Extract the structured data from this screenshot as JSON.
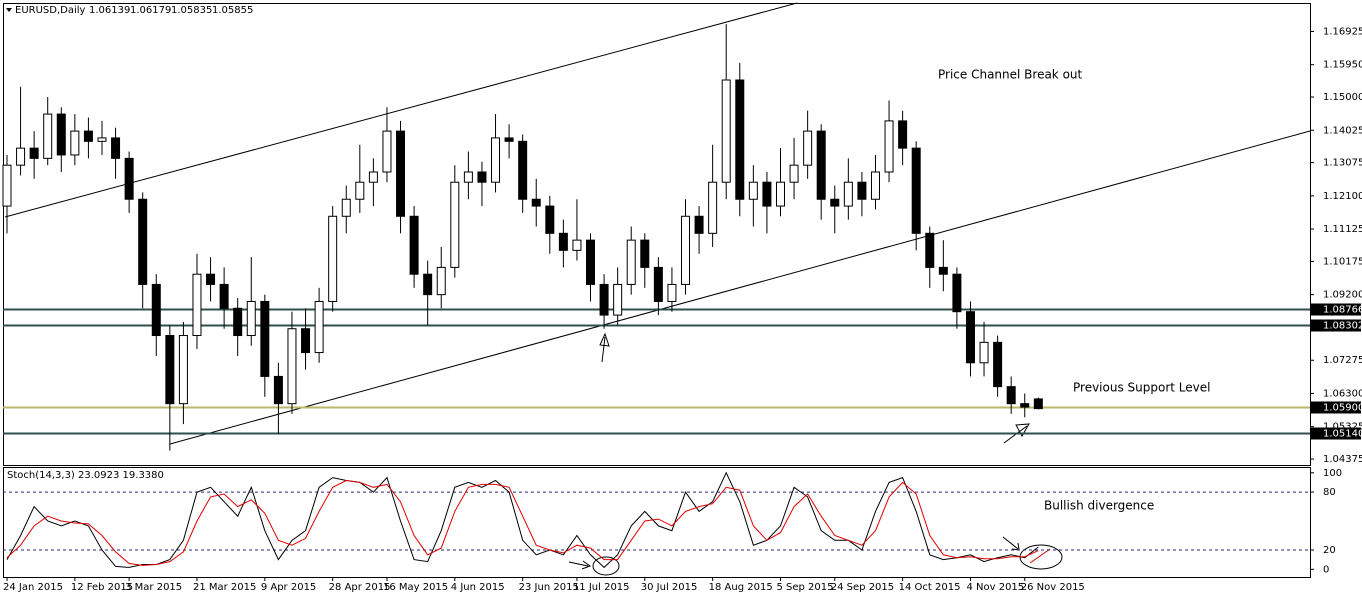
{
  "chart_data": {
    "type": "candlestick",
    "symbol": "EURUSD,Daily",
    "up_color": "#ffffff",
    "down_color": "#000000",
    "categories": [
      "24 Jan 2015",
      null,
      null,
      null,
      null,
      "12 Feb 2015",
      null,
      null,
      null,
      "3 Mar 2015",
      null,
      null,
      null,
      null,
      "21 Mar 2015",
      null,
      null,
      null,
      null,
      "9 Apr 2015",
      null,
      null,
      null,
      null,
      "28 Apr 2015",
      null,
      null,
      null,
      "16 May 2015",
      null,
      null,
      null,
      null,
      "4 Jun 2015",
      null,
      null,
      null,
      null,
      "23 Jun 2015",
      null,
      null,
      null,
      "11 Jul 2015",
      null,
      null,
      null,
      null,
      "30 Jul 2015",
      null,
      null,
      null,
      null,
      "18 Aug 2015",
      null,
      null,
      null,
      null,
      "5 Sep 2015",
      null,
      null,
      null,
      "24 Sep 2015",
      null,
      null,
      null,
      null,
      "14 Oct 2015",
      null,
      null,
      null,
      null,
      "4 Nov 2015",
      null,
      null,
      null,
      "26 Nov 2015",
      null
    ],
    "candles": [
      [
        1.118,
        1.133,
        1.11,
        1.13
      ],
      [
        1.13,
        1.153,
        1.127,
        1.135
      ],
      [
        1.135,
        1.14,
        1.126,
        1.132
      ],
      [
        1.132,
        1.15,
        1.13,
        1.145
      ],
      [
        1.145,
        1.147,
        1.128,
        1.133
      ],
      [
        1.133,
        1.145,
        1.13,
        1.14
      ],
      [
        1.14,
        1.144,
        1.132,
        1.137
      ],
      [
        1.137,
        1.143,
        1.133,
        1.138
      ],
      [
        1.138,
        1.141,
        1.126,
        1.132
      ],
      [
        1.132,
        1.134,
        1.116,
        1.12
      ],
      [
        1.12,
        1.122,
        1.088,
        1.095
      ],
      [
        1.095,
        1.098,
        1.074,
        1.08
      ],
      [
        1.08,
        1.083,
        1.0462,
        1.06
      ],
      [
        1.06,
        1.084,
        1.054,
        1.08
      ],
      [
        1.08,
        1.104,
        1.076,
        1.098
      ],
      [
        1.098,
        1.103,
        1.09,
        1.095
      ],
      [
        1.095,
        1.1,
        1.082,
        1.088
      ],
      [
        1.088,
        1.091,
        1.074,
        1.08
      ],
      [
        1.08,
        1.103,
        1.077,
        1.09
      ],
      [
        1.09,
        1.092,
        1.062,
        1.068
      ],
      [
        1.068,
        1.072,
        1.051,
        1.06
      ],
      [
        1.06,
        1.087,
        1.057,
        1.082
      ],
      [
        1.082,
        1.088,
        1.07,
        1.075
      ],
      [
        1.075,
        1.094,
        1.072,
        1.09
      ],
      [
        1.09,
        1.118,
        1.087,
        1.115
      ],
      [
        1.115,
        1.124,
        1.11,
        1.12
      ],
      [
        1.12,
        1.136,
        1.116,
        1.125
      ],
      [
        1.125,
        1.132,
        1.118,
        1.128
      ],
      [
        1.128,
        1.147,
        1.125,
        1.14
      ],
      [
        1.14,
        1.143,
        1.11,
        1.115
      ],
      [
        1.115,
        1.118,
        1.094,
        1.098
      ],
      [
        1.098,
        1.102,
        1.083,
        1.092
      ],
      [
        1.092,
        1.106,
        1.088,
        1.1
      ],
      [
        1.1,
        1.13,
        1.097,
        1.125
      ],
      [
        1.125,
        1.134,
        1.12,
        1.128
      ],
      [
        1.128,
        1.131,
        1.118,
        1.125
      ],
      [
        1.125,
        1.145,
        1.122,
        1.138
      ],
      [
        1.138,
        1.142,
        1.132,
        1.137
      ],
      [
        1.137,
        1.139,
        1.116,
        1.12
      ],
      [
        1.12,
        1.126,
        1.112,
        1.118
      ],
      [
        1.118,
        1.121,
        1.104,
        1.11
      ],
      [
        1.11,
        1.114,
        1.1,
        1.105
      ],
      [
        1.105,
        1.12,
        1.102,
        1.108
      ],
      [
        1.108,
        1.11,
        1.09,
        1.095
      ],
      [
        1.095,
        1.098,
        1.082,
        1.086
      ],
      [
        1.086,
        1.1,
        1.083,
        1.095
      ],
      [
        1.095,
        1.112,
        1.092,
        1.108
      ],
      [
        1.108,
        1.11,
        1.094,
        1.1
      ],
      [
        1.1,
        1.103,
        1.086,
        1.09
      ],
      [
        1.09,
        1.1,
        1.087,
        1.095
      ],
      [
        1.095,
        1.12,
        1.092,
        1.115
      ],
      [
        1.115,
        1.118,
        1.104,
        1.11
      ],
      [
        1.11,
        1.136,
        1.106,
        1.125
      ],
      [
        1.125,
        1.1714,
        1.12,
        1.155
      ],
      [
        1.155,
        1.16,
        1.115,
        1.12
      ],
      [
        1.12,
        1.13,
        1.112,
        1.125
      ],
      [
        1.125,
        1.128,
        1.11,
        1.118
      ],
      [
        1.118,
        1.135,
        1.115,
        1.125
      ],
      [
        1.125,
        1.138,
        1.12,
        1.13
      ],
      [
        1.13,
        1.146,
        1.126,
        1.14
      ],
      [
        1.14,
        1.142,
        1.114,
        1.12
      ],
      [
        1.12,
        1.124,
        1.11,
        1.118
      ],
      [
        1.118,
        1.132,
        1.114,
        1.125
      ],
      [
        1.125,
        1.128,
        1.115,
        1.12
      ],
      [
        1.12,
        1.133,
        1.117,
        1.128
      ],
      [
        1.128,
        1.149,
        1.125,
        1.143
      ],
      [
        1.143,
        1.146,
        1.13,
        1.135
      ],
      [
        1.135,
        1.137,
        1.105,
        1.11
      ],
      [
        1.11,
        1.112,
        1.094,
        1.1
      ],
      [
        1.1,
        1.108,
        1.093,
        1.098
      ],
      [
        1.098,
        1.1,
        1.082,
        1.087
      ],
      [
        1.087,
        1.09,
        1.068,
        1.072
      ],
      [
        1.072,
        1.084,
        1.068,
        1.078
      ],
      [
        1.078,
        1.08,
        1.062,
        1.065
      ],
      [
        1.065,
        1.068,
        1.057,
        1.06
      ],
      [
        1.06,
        1.063,
        1.056,
        1.059
      ],
      [
        1.06139,
        1.06179,
        1.05835,
        1.05855
      ]
    ],
    "ylim": [
      1.042,
      1.1776
    ],
    "yticks": [
      1.16925,
      {
        "value": 1.1595,
        "label": "1.15950"
      },
      {
        "value": 1.15,
        "label": "1.15000"
      },
      1.14025,
      1.13075,
      {
        "value": 1.121,
        "label": "1.12100"
      },
      1.11125,
      1.10175,
      {
        "value": 1.092,
        "label": "1.09200"
      },
      1.07275,
      {
        "value": 1.063,
        "label": "1.06300"
      },
      1.05325,
      1.04375
    ],
    "levels": [
      {
        "value": 1.08766,
        "color": "#2f4f4f"
      },
      {
        "value": 1.08302,
        "color": "#2f4f4f"
      },
      {
        "value": 1.059,
        "label": "1.05900",
        "color": "#b8b86a"
      },
      {
        "value": 1.0514,
        "label": "1.05140",
        "color": "#2f4f4f"
      }
    ],
    "annotations": [
      "Price Channel Break out",
      "Previous Support Level",
      "Bullish divergence"
    ],
    "stoch": {
      "title": "Stoch(14,3,3) 23.0923 19.3380",
      "ylim": [
        -8,
        106
      ],
      "yticks": [
        100,
        80,
        20,
        0
      ],
      "levels": [
        80,
        20
      ],
      "series": [
        {
          "color": "#000000",
          "values": [
            10,
            35,
            65,
            50,
            45,
            50,
            45,
            20,
            3,
            2,
            5,
            5,
            10,
            30,
            80,
            85,
            70,
            55,
            85,
            40,
            10,
            30,
            40,
            85,
            95,
            92,
            90,
            80,
            95,
            50,
            10,
            8,
            40,
            85,
            90,
            85,
            92,
            80,
            30,
            15,
            20,
            15,
            35,
            15,
            2,
            15,
            45,
            60,
            45,
            40,
            80,
            60,
            70,
            100,
            70,
            25,
            30,
            45,
            85,
            75,
            40,
            30,
            30,
            20,
            60,
            90,
            95,
            60,
            15,
            10,
            12,
            15,
            8,
            12,
            15,
            12,
            23.0923
          ]
        },
        {
          "color": "#e00000",
          "values": [
            12,
            25,
            45,
            55,
            50,
            48,
            47,
            35,
            18,
            6,
            4,
            5,
            8,
            18,
            50,
            75,
            78,
            65,
            72,
            58,
            30,
            25,
            32,
            60,
            85,
            92,
            90,
            85,
            88,
            70,
            35,
            15,
            22,
            60,
            85,
            88,
            88,
            85,
            55,
            25,
            20,
            17,
            25,
            22,
            10,
            10,
            30,
            50,
            52,
            45,
            60,
            65,
            68,
            85,
            82,
            45,
            30,
            38,
            65,
            78,
            55,
            35,
            30,
            25,
            40,
            75,
            90,
            78,
            35,
            15,
            12,
            13,
            11,
            11,
            13,
            13,
            19.338
          ]
        }
      ]
    }
  }
}
